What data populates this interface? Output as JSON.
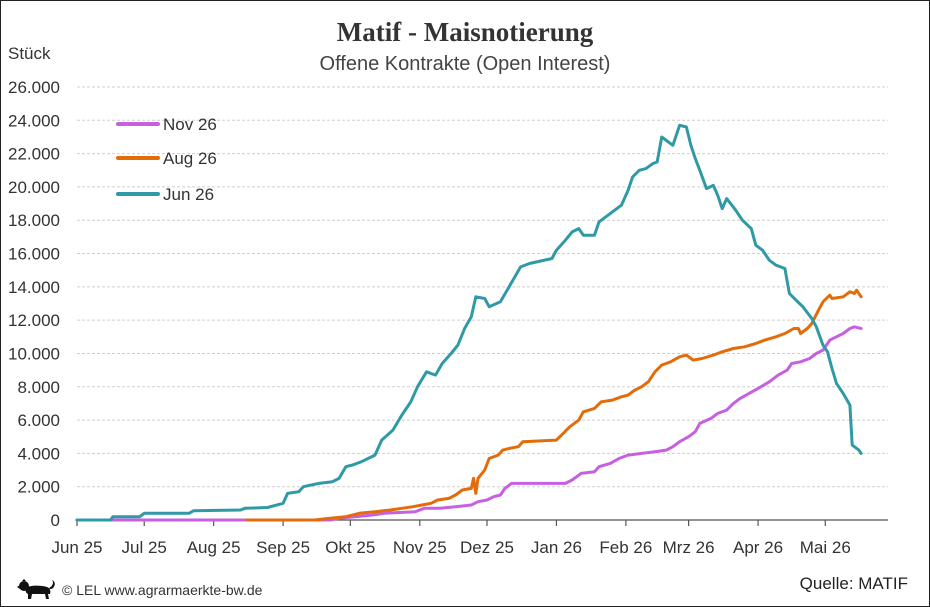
{
  "chart_data": {
    "type": "line",
    "title": "Matif - Maisnotierung",
    "subtitle": "Offene Kontrakte (Open Interest)",
    "ylabel": "Stück",
    "ylim": [
      0,
      26000
    ],
    "yticks": [
      0,
      2000,
      4000,
      6000,
      8000,
      10000,
      12000,
      14000,
      16000,
      18000,
      20000,
      22000,
      24000,
      26000
    ],
    "ytick_labels": [
      "0",
      "2.000",
      "4.000",
      "6.000",
      "8.000",
      "10.000",
      "12.000",
      "14.000",
      "16.000",
      "18.000",
      "20.000",
      "22.000",
      "24.000",
      "26.000"
    ],
    "xlim": [
      "2025-06-01",
      "2026-05-29"
    ],
    "xticks": [
      "2025-06-01",
      "2025-07-01",
      "2025-08-01",
      "2025-09-01",
      "2025-10-01",
      "2025-11-01",
      "2025-12-01",
      "2026-01-01",
      "2026-02-01",
      "2026-03-01",
      "2026-04-01",
      "2026-05-01"
    ],
    "xtick_labels": [
      "Jun 25",
      "Jul 25",
      "Aug 25",
      "Sep 25",
      "Okt 25",
      "Nov 25",
      "Dez 25",
      "Jan 26",
      "Feb 26",
      "Mrz 26",
      "Apr 26",
      "Mai 26"
    ],
    "grid": true,
    "legend": "top-left",
    "series": [
      {
        "name": "Nov 26",
        "color": "#c660e0",
        "points": [
          [
            "2025-06-01",
            0
          ],
          [
            "2025-09-22",
            0
          ],
          [
            "2025-09-26",
            100
          ],
          [
            "2025-10-03",
            200
          ],
          [
            "2025-10-11",
            300
          ],
          [
            "2025-10-16",
            400
          ],
          [
            "2025-10-23",
            450
          ],
          [
            "2025-10-30",
            500
          ],
          [
            "2025-11-03",
            700
          ],
          [
            "2025-11-10",
            700
          ],
          [
            "2025-11-17",
            800
          ],
          [
            "2025-11-24",
            900
          ],
          [
            "2025-11-27",
            1100
          ],
          [
            "2025-12-01",
            1200
          ],
          [
            "2025-12-04",
            1400
          ],
          [
            "2025-12-07",
            1500
          ],
          [
            "2025-12-09",
            1900
          ],
          [
            "2025-12-12",
            2200
          ],
          [
            "2026-01-05",
            2200
          ],
          [
            "2026-01-08",
            2400
          ],
          [
            "2026-01-12",
            2800
          ],
          [
            "2026-01-18",
            2900
          ],
          [
            "2026-01-20",
            3200
          ],
          [
            "2026-01-25",
            3400
          ],
          [
            "2026-01-29",
            3700
          ],
          [
            "2026-02-02",
            3900
          ],
          [
            "2026-02-08",
            4000
          ],
          [
            "2026-02-14",
            4100
          ],
          [
            "2026-02-19",
            4200
          ],
          [
            "2026-02-22",
            4400
          ],
          [
            "2026-02-25",
            4700
          ],
          [
            "2026-03-01",
            5000
          ],
          [
            "2026-03-04",
            5300
          ],
          [
            "2026-03-06",
            5800
          ],
          [
            "2026-03-11",
            6100
          ],
          [
            "2026-03-14",
            6400
          ],
          [
            "2026-03-18",
            6600
          ],
          [
            "2026-03-21",
            7000
          ],
          [
            "2026-03-24",
            7300
          ],
          [
            "2026-03-28",
            7600
          ],
          [
            "2026-04-01",
            7900
          ],
          [
            "2026-04-06",
            8300
          ],
          [
            "2026-04-10",
            8700
          ],
          [
            "2026-04-14",
            9000
          ],
          [
            "2026-04-16",
            9400
          ],
          [
            "2026-04-20",
            9500
          ],
          [
            "2026-04-24",
            9700
          ],
          [
            "2026-04-27",
            10000
          ],
          [
            "2026-04-30",
            10200
          ],
          [
            "2026-05-03",
            10800
          ],
          [
            "2026-05-06",
            11000
          ],
          [
            "2026-05-09",
            11200
          ],
          [
            "2026-05-12",
            11500
          ],
          [
            "2026-05-14",
            11600
          ],
          [
            "2026-05-17",
            11500
          ]
        ]
      },
      {
        "name": "Aug 26",
        "color": "#e36c0a",
        "points": [
          [
            "2025-08-16",
            0
          ],
          [
            "2025-09-15",
            0
          ],
          [
            "2025-09-22",
            100
          ],
          [
            "2025-09-29",
            200
          ],
          [
            "2025-10-05",
            400
          ],
          [
            "2025-10-12",
            500
          ],
          [
            "2025-10-19",
            600
          ],
          [
            "2025-10-24",
            700
          ],
          [
            "2025-10-29",
            800
          ],
          [
            "2025-11-02",
            900
          ],
          [
            "2025-11-06",
            1000
          ],
          [
            "2025-11-09",
            1200
          ],
          [
            "2025-11-14",
            1300
          ],
          [
            "2025-11-17",
            1500
          ],
          [
            "2025-11-20",
            1800
          ],
          [
            "2025-11-24",
            1900
          ],
          [
            "2025-11-25",
            2500
          ],
          [
            "2025-11-26",
            1600
          ],
          [
            "2025-11-27",
            2500
          ],
          [
            "2025-11-30",
            3000
          ],
          [
            "2025-12-02",
            3700
          ],
          [
            "2025-12-06",
            3900
          ],
          [
            "2025-12-08",
            4200
          ],
          [
            "2025-12-11",
            4300
          ],
          [
            "2025-12-15",
            4400
          ],
          [
            "2025-12-17",
            4700
          ],
          [
            "2026-01-01",
            4800
          ],
          [
            "2026-01-04",
            5200
          ],
          [
            "2026-01-07",
            5600
          ],
          [
            "2026-01-11",
            6000
          ],
          [
            "2026-01-13",
            6500
          ],
          [
            "2026-01-18",
            6700
          ],
          [
            "2026-01-21",
            7100
          ],
          [
            "2026-01-26",
            7200
          ],
          [
            "2026-01-30",
            7400
          ],
          [
            "2026-02-02",
            7500
          ],
          [
            "2026-02-05",
            7800
          ],
          [
            "2026-02-08",
            8000
          ],
          [
            "2026-02-11",
            8300
          ],
          [
            "2026-02-14",
            8900
          ],
          [
            "2026-02-17",
            9300
          ],
          [
            "2026-02-21",
            9500
          ],
          [
            "2026-02-25",
            9800
          ],
          [
            "2026-02-28",
            9900
          ],
          [
            "2026-03-03",
            9600
          ],
          [
            "2026-03-07",
            9700
          ],
          [
            "2026-03-12",
            9900
          ],
          [
            "2026-03-16",
            10100
          ],
          [
            "2026-03-21",
            10300
          ],
          [
            "2026-03-26",
            10400
          ],
          [
            "2026-03-31",
            10600
          ],
          [
            "2026-04-04",
            10800
          ],
          [
            "2026-04-09",
            11000
          ],
          [
            "2026-04-13",
            11200
          ],
          [
            "2026-04-17",
            11500
          ],
          [
            "2026-04-19",
            11500
          ],
          [
            "2026-04-20",
            11200
          ],
          [
            "2026-04-23",
            11500
          ],
          [
            "2026-04-25",
            11800
          ],
          [
            "2026-04-28",
            12600
          ],
          [
            "2026-04-30",
            13100
          ],
          [
            "2026-05-03",
            13500
          ],
          [
            "2026-05-04",
            13300
          ],
          [
            "2026-05-09",
            13400
          ],
          [
            "2026-05-12",
            13700
          ],
          [
            "2026-05-14",
            13600
          ],
          [
            "2026-05-15",
            13800
          ],
          [
            "2026-05-17",
            13400
          ]
        ]
      },
      {
        "name": "Jun 26",
        "color": "#2f9aa6",
        "points": [
          [
            "2025-06-01",
            0
          ],
          [
            "2025-06-16",
            0
          ],
          [
            "2025-06-17",
            200
          ],
          [
            "2025-06-29",
            200
          ],
          [
            "2025-07-01",
            400
          ],
          [
            "2025-07-21",
            400
          ],
          [
            "2025-07-23",
            550
          ],
          [
            "2025-08-13",
            600
          ],
          [
            "2025-08-15",
            700
          ],
          [
            "2025-08-25",
            750
          ],
          [
            "2025-09-01",
            1000
          ],
          [
            "2025-09-03",
            1600
          ],
          [
            "2025-09-08",
            1700
          ],
          [
            "2025-09-10",
            2000
          ],
          [
            "2025-09-17",
            2200
          ],
          [
            "2025-09-23",
            2300
          ],
          [
            "2025-09-26",
            2500
          ],
          [
            "2025-09-29",
            3200
          ],
          [
            "2025-10-02",
            3300
          ],
          [
            "2025-10-06",
            3500
          ],
          [
            "2025-10-12",
            3900
          ],
          [
            "2025-10-15",
            4800
          ],
          [
            "2025-10-20",
            5400
          ],
          [
            "2025-10-24",
            6300
          ],
          [
            "2025-10-28",
            7100
          ],
          [
            "2025-10-31",
            8000
          ],
          [
            "2025-11-04",
            8900
          ],
          [
            "2025-11-08",
            8700
          ],
          [
            "2025-11-11",
            9400
          ],
          [
            "2025-11-15",
            10000
          ],
          [
            "2025-11-18",
            10500
          ],
          [
            "2025-11-21",
            11500
          ],
          [
            "2025-11-24",
            12200
          ],
          [
            "2025-11-26",
            13400
          ],
          [
            "2025-11-30",
            13300
          ],
          [
            "2025-12-02",
            12800
          ],
          [
            "2025-12-07",
            13100
          ],
          [
            "2025-12-10",
            13800
          ],
          [
            "2025-12-13",
            14500
          ],
          [
            "2025-12-16",
            15200
          ],
          [
            "2025-12-20",
            15400
          ],
          [
            "2025-12-30",
            15700
          ],
          [
            "2026-01-01",
            16200
          ],
          [
            "2026-01-05",
            16800
          ],
          [
            "2026-01-08",
            17300
          ],
          [
            "2026-01-11",
            17500
          ],
          [
            "2026-01-13",
            17100
          ],
          [
            "2026-01-18",
            17100
          ],
          [
            "2026-01-20",
            17900
          ],
          [
            "2026-01-25",
            18400
          ],
          [
            "2026-01-30",
            18900
          ],
          [
            "2026-02-02",
            19800
          ],
          [
            "2026-02-04",
            20600
          ],
          [
            "2026-02-07",
            21000
          ],
          [
            "2026-02-10",
            21100
          ],
          [
            "2026-02-13",
            21400
          ],
          [
            "2026-02-15",
            21500
          ],
          [
            "2026-02-17",
            23000
          ],
          [
            "2026-02-20",
            22700
          ],
          [
            "2026-02-22",
            22500
          ],
          [
            "2026-02-25",
            23700
          ],
          [
            "2026-02-28",
            23600
          ],
          [
            "2026-03-02",
            22500
          ],
          [
            "2026-03-04",
            21700
          ],
          [
            "2026-03-06",
            21000
          ],
          [
            "2026-03-09",
            19900
          ],
          [
            "2026-03-12",
            20100
          ],
          [
            "2026-03-14",
            19500
          ],
          [
            "2026-03-16",
            18700
          ],
          [
            "2026-03-18",
            19300
          ],
          [
            "2026-03-22",
            18600
          ],
          [
            "2026-03-25",
            18000
          ],
          [
            "2026-03-29",
            17500
          ],
          [
            "2026-03-31",
            16500
          ],
          [
            "2026-04-03",
            16200
          ],
          [
            "2026-04-06",
            15600
          ],
          [
            "2026-04-09",
            15300
          ],
          [
            "2026-04-13",
            15100
          ],
          [
            "2026-04-15",
            13600
          ],
          [
            "2026-04-18",
            13200
          ],
          [
            "2026-04-21",
            12800
          ],
          [
            "2026-04-25",
            12100
          ],
          [
            "2026-04-27",
            11600
          ],
          [
            "2026-04-30",
            10500
          ],
          [
            "2026-05-02",
            10100
          ],
          [
            "2026-05-04",
            9100
          ],
          [
            "2026-05-06",
            8200
          ],
          [
            "2026-05-09",
            7600
          ],
          [
            "2026-05-12",
            6900
          ],
          [
            "2026-05-13",
            4500
          ],
          [
            "2026-05-16",
            4200
          ],
          [
            "2026-05-17",
            4000
          ]
        ]
      }
    ]
  },
  "footer": {
    "logo_icon": "lion-icon",
    "copyright": "© LEL www.agrarmaerkte-bw.de",
    "source": "Quelle: MATIF"
  }
}
